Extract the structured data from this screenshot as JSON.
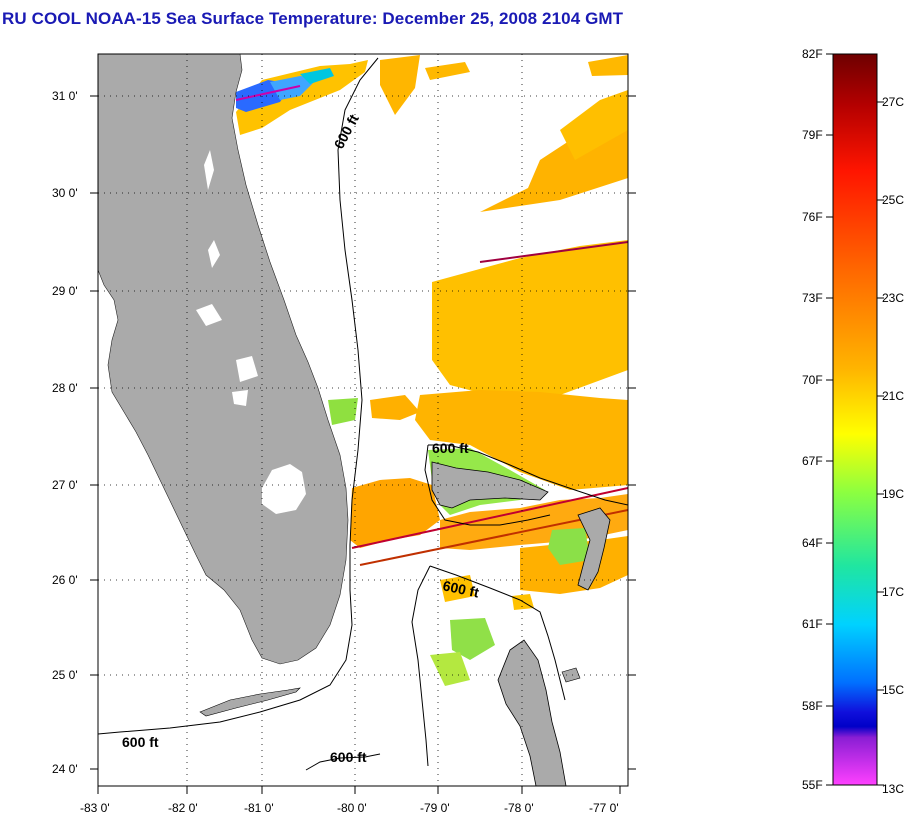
{
  "title": "RU COOL  NOAA-15  Sea Surface Temperature:  December 25, 2008 2104 GMT",
  "map": {
    "lon_labels": [
      "-83 0'",
      "-82 0'",
      "-81 0'",
      "-80 0'",
      "-79 0'",
      "-78 0'",
      "-77 0'"
    ],
    "lat_labels": [
      "31 0'",
      "30 0'",
      "29 0'",
      "28 0'",
      "27 0'",
      "26 0'",
      "25 0'",
      "24 0'"
    ],
    "contour_labels": [
      "600 ft",
      "600 ft",
      "600 ft",
      "600 ft",
      "600 ft"
    ],
    "colors": {
      "land": "#aaaaaa",
      "title": "#1a1ab4"
    }
  },
  "colorbar": {
    "fahrenheit_labels": [
      "82F",
      "79F",
      "76F",
      "73F",
      "70F",
      "67F",
      "64F",
      "61F",
      "58F",
      "55F"
    ],
    "celsius_labels": [
      "27C",
      "25C",
      "23C",
      "21C",
      "19C",
      "17C",
      "15C",
      "13C"
    ]
  }
}
